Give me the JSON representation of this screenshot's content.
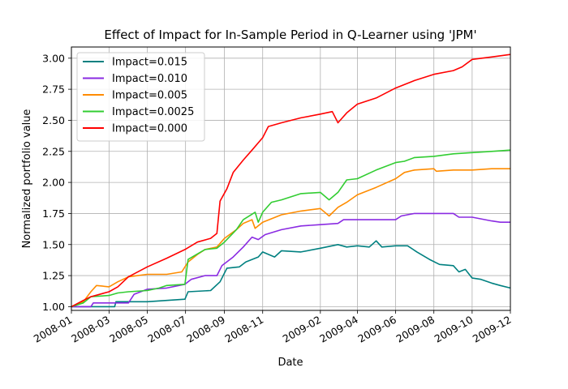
{
  "chart_data": {
    "type": "line",
    "title": "Effect of Impact for In-Sample Period in Q-Learner using 'JPM'",
    "xlabel": "Date",
    "ylabel": "Normalized portfolio value",
    "xlim": [
      "2008-01",
      "2009-12"
    ],
    "ylim": [
      0.97,
      3.09
    ],
    "x_ticks": [
      "2008-01",
      "2008-03",
      "2008-05",
      "2008-07",
      "2008-09",
      "2008-11",
      "2009-02",
      "2009-04",
      "2009-06",
      "2009-08",
      "2009-10",
      "2009-12"
    ],
    "y_ticks": [
      "1.00",
      "1.25",
      "1.50",
      "1.75",
      "2.00",
      "2.25",
      "2.50",
      "2.75",
      "3.00"
    ],
    "grid": true,
    "legend_position": "top-left",
    "series": [
      {
        "name": "Impact=0.015",
        "color": "#008080",
        "points": [
          [
            "2008-01-01",
            1.0
          ],
          [
            "2008-02-15",
            1.0
          ],
          [
            "2008-03-10",
            1.0
          ],
          [
            "2008-03-12",
            1.04
          ],
          [
            "2008-05-01",
            1.04
          ],
          [
            "2008-06-01",
            1.05
          ],
          [
            "2008-06-30",
            1.06
          ],
          [
            "2008-07-05",
            1.12
          ],
          [
            "2008-08-10",
            1.13
          ],
          [
            "2008-08-25",
            1.2
          ],
          [
            "2008-09-05",
            1.31
          ],
          [
            "2008-09-25",
            1.32
          ],
          [
            "2008-10-05",
            1.36
          ],
          [
            "2008-10-25",
            1.4
          ],
          [
            "2008-11-01",
            1.44
          ],
          [
            "2008-11-20",
            1.4
          ],
          [
            "2008-12-01",
            1.45
          ],
          [
            "2009-01-01",
            1.44
          ],
          [
            "2009-02-01",
            1.47
          ],
          [
            "2009-03-01",
            1.5
          ],
          [
            "2009-03-15",
            1.48
          ],
          [
            "2009-04-01",
            1.49
          ],
          [
            "2009-04-20",
            1.48
          ],
          [
            "2009-05-01",
            1.53
          ],
          [
            "2009-05-10",
            1.48
          ],
          [
            "2009-06-01",
            1.49
          ],
          [
            "2009-06-20",
            1.49
          ],
          [
            "2009-07-05",
            1.44
          ],
          [
            "2009-07-25",
            1.38
          ],
          [
            "2009-08-10",
            1.34
          ],
          [
            "2009-09-01",
            1.33
          ],
          [
            "2009-09-10",
            1.28
          ],
          [
            "2009-09-20",
            1.3
          ],
          [
            "2009-10-01",
            1.23
          ],
          [
            "2009-10-15",
            1.22
          ],
          [
            "2009-11-01",
            1.19
          ],
          [
            "2009-11-15",
            1.17
          ],
          [
            "2009-12-01",
            1.15
          ]
        ]
      },
      {
        "name": "Impact=0.010",
        "color": "#8a2be2",
        "points": [
          [
            "2008-01-01",
            1.0
          ],
          [
            "2008-02-01",
            1.0
          ],
          [
            "2008-02-05",
            1.03
          ],
          [
            "2008-04-01",
            1.03
          ],
          [
            "2008-04-10",
            1.1
          ],
          [
            "2008-05-01",
            1.14
          ],
          [
            "2008-06-01",
            1.15
          ],
          [
            "2008-06-30",
            1.18
          ],
          [
            "2008-07-10",
            1.22
          ],
          [
            "2008-08-01",
            1.25
          ],
          [
            "2008-08-20",
            1.25
          ],
          [
            "2008-08-28",
            1.33
          ],
          [
            "2008-09-15",
            1.4
          ],
          [
            "2008-10-01",
            1.48
          ],
          [
            "2008-10-15",
            1.56
          ],
          [
            "2008-10-25",
            1.54
          ],
          [
            "2008-11-05",
            1.58
          ],
          [
            "2008-12-01",
            1.62
          ],
          [
            "2009-01-01",
            1.65
          ],
          [
            "2009-02-01",
            1.66
          ],
          [
            "2009-03-01",
            1.67
          ],
          [
            "2009-03-10",
            1.7
          ],
          [
            "2009-04-01",
            1.7
          ],
          [
            "2009-05-01",
            1.7
          ],
          [
            "2009-06-01",
            1.7
          ],
          [
            "2009-06-10",
            1.73
          ],
          [
            "2009-07-01",
            1.75
          ],
          [
            "2009-08-01",
            1.75
          ],
          [
            "2009-09-01",
            1.75
          ],
          [
            "2009-09-10",
            1.72
          ],
          [
            "2009-10-01",
            1.72
          ],
          [
            "2009-11-01",
            1.69
          ],
          [
            "2009-11-15",
            1.68
          ],
          [
            "2009-12-01",
            1.68
          ]
        ]
      },
      {
        "name": "Impact=0.005",
        "color": "#ff8c00",
        "points": [
          [
            "2008-01-01",
            1.0
          ],
          [
            "2008-01-20",
            1.04
          ],
          [
            "2008-02-01",
            1.12
          ],
          [
            "2008-02-10",
            1.17
          ],
          [
            "2008-03-01",
            1.16
          ],
          [
            "2008-03-15",
            1.2
          ],
          [
            "2008-04-01",
            1.24
          ],
          [
            "2008-05-01",
            1.26
          ],
          [
            "2008-06-01",
            1.26
          ],
          [
            "2008-06-25",
            1.28
          ],
          [
            "2008-07-05",
            1.36
          ],
          [
            "2008-07-20",
            1.42
          ],
          [
            "2008-08-01",
            1.46
          ],
          [
            "2008-08-20",
            1.48
          ],
          [
            "2008-09-01",
            1.55
          ],
          [
            "2008-09-20",
            1.62
          ],
          [
            "2008-10-01",
            1.67
          ],
          [
            "2008-10-15",
            1.7
          ],
          [
            "2008-10-20",
            1.63
          ],
          [
            "2008-11-01",
            1.68
          ],
          [
            "2008-12-01",
            1.74
          ],
          [
            "2009-01-01",
            1.77
          ],
          [
            "2009-02-01",
            1.79
          ],
          [
            "2009-02-15",
            1.73
          ],
          [
            "2009-03-01",
            1.8
          ],
          [
            "2009-03-15",
            1.84
          ],
          [
            "2009-04-01",
            1.9
          ],
          [
            "2009-05-01",
            1.96
          ],
          [
            "2009-06-01",
            2.03
          ],
          [
            "2009-06-15",
            2.08
          ],
          [
            "2009-07-01",
            2.1
          ],
          [
            "2009-08-01",
            2.11
          ],
          [
            "2009-08-05",
            2.09
          ],
          [
            "2009-09-01",
            2.1
          ],
          [
            "2009-10-01",
            2.1
          ],
          [
            "2009-11-01",
            2.11
          ],
          [
            "2009-12-01",
            2.11
          ]
        ]
      },
      {
        "name": "Impact=0.0025",
        "color": "#32cd32",
        "points": [
          [
            "2008-01-01",
            1.0
          ],
          [
            "2008-01-20",
            1.03
          ],
          [
            "2008-02-01",
            1.08
          ],
          [
            "2008-03-01",
            1.09
          ],
          [
            "2008-03-15",
            1.11
          ],
          [
            "2008-04-01",
            1.12
          ],
          [
            "2008-05-01",
            1.13
          ],
          [
            "2008-05-20",
            1.15
          ],
          [
            "2008-06-01",
            1.17
          ],
          [
            "2008-06-30",
            1.18
          ],
          [
            "2008-07-05",
            1.38
          ],
          [
            "2008-08-01",
            1.46
          ],
          [
            "2008-08-20",
            1.47
          ],
          [
            "2008-09-01",
            1.52
          ],
          [
            "2008-09-20",
            1.62
          ],
          [
            "2008-10-01",
            1.7
          ],
          [
            "2008-10-20",
            1.76
          ],
          [
            "2008-10-25",
            1.68
          ],
          [
            "2008-11-01",
            1.76
          ],
          [
            "2008-11-15",
            1.84
          ],
          [
            "2008-12-01",
            1.86
          ],
          [
            "2009-01-01",
            1.91
          ],
          [
            "2009-02-01",
            1.92
          ],
          [
            "2009-02-15",
            1.86
          ],
          [
            "2009-03-01",
            1.92
          ],
          [
            "2009-03-15",
            2.02
          ],
          [
            "2009-04-01",
            2.03
          ],
          [
            "2009-05-01",
            2.1
          ],
          [
            "2009-06-01",
            2.16
          ],
          [
            "2009-06-15",
            2.17
          ],
          [
            "2009-07-01",
            2.2
          ],
          [
            "2009-08-01",
            2.21
          ],
          [
            "2009-09-01",
            2.23
          ],
          [
            "2009-10-01",
            2.24
          ],
          [
            "2009-11-01",
            2.25
          ],
          [
            "2009-12-01",
            2.26
          ]
        ]
      },
      {
        "name": "Impact=0.000",
        "color": "#ff0000",
        "points": [
          [
            "2008-01-01",
            1.0
          ],
          [
            "2008-01-20",
            1.05
          ],
          [
            "2008-02-01",
            1.08
          ],
          [
            "2008-03-01",
            1.12
          ],
          [
            "2008-03-15",
            1.16
          ],
          [
            "2008-04-01",
            1.24
          ],
          [
            "2008-05-01",
            1.32
          ],
          [
            "2008-06-01",
            1.39
          ],
          [
            "2008-06-30",
            1.46
          ],
          [
            "2008-07-20",
            1.52
          ],
          [
            "2008-08-10",
            1.55
          ],
          [
            "2008-08-20",
            1.59
          ],
          [
            "2008-08-25",
            1.85
          ],
          [
            "2008-09-05",
            1.95
          ],
          [
            "2008-09-15",
            2.08
          ],
          [
            "2008-10-01",
            2.18
          ],
          [
            "2008-10-15",
            2.26
          ],
          [
            "2008-11-01",
            2.36
          ],
          [
            "2008-11-10",
            2.45
          ],
          [
            "2008-12-01",
            2.48
          ],
          [
            "2009-01-01",
            2.52
          ],
          [
            "2009-02-01",
            2.55
          ],
          [
            "2009-02-20",
            2.57
          ],
          [
            "2009-03-01",
            2.48
          ],
          [
            "2009-03-15",
            2.56
          ],
          [
            "2009-04-01",
            2.63
          ],
          [
            "2009-05-01",
            2.68
          ],
          [
            "2009-06-01",
            2.76
          ],
          [
            "2009-07-01",
            2.82
          ],
          [
            "2009-08-01",
            2.87
          ],
          [
            "2009-09-01",
            2.9
          ],
          [
            "2009-09-15",
            2.93
          ],
          [
            "2009-10-01",
            2.99
          ],
          [
            "2009-11-01",
            3.01
          ],
          [
            "2009-12-01",
            3.03
          ]
        ]
      }
    ]
  }
}
